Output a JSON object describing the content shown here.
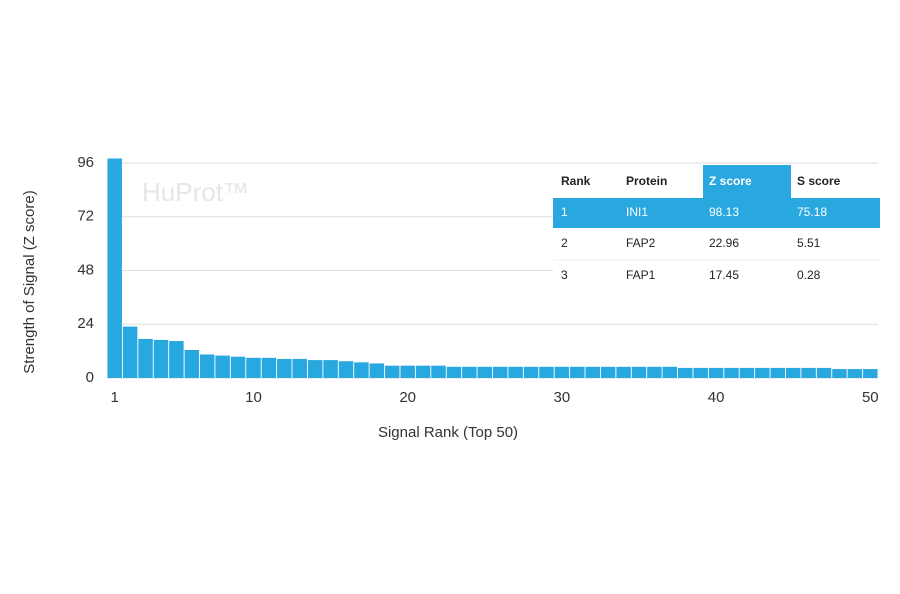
{
  "chart_data": {
    "type": "bar",
    "x": [
      1,
      2,
      3,
      4,
      5,
      6,
      7,
      8,
      9,
      10,
      11,
      12,
      13,
      14,
      15,
      16,
      17,
      18,
      19,
      20,
      21,
      22,
      23,
      24,
      25,
      26,
      27,
      28,
      29,
      30,
      31,
      32,
      33,
      34,
      35,
      36,
      37,
      38,
      39,
      40,
      41,
      42,
      43,
      44,
      45,
      46,
      47,
      48,
      49,
      50
    ],
    "values": [
      98,
      22.96,
      17.45,
      17,
      16.5,
      12.5,
      10.5,
      10,
      9.5,
      9,
      9,
      8.5,
      8.5,
      8,
      8,
      7.5,
      7,
      6.5,
      5.5,
      5.5,
      5.5,
      5.5,
      5,
      5,
      5,
      5,
      5,
      5,
      5,
      5,
      5,
      5,
      5,
      5,
      5,
      5,
      5,
      4.5,
      4.5,
      4.5,
      4.5,
      4.5,
      4.5,
      4.5,
      4.5,
      4.5,
      4.5,
      4,
      4,
      4
    ],
    "color": "#29a8e0",
    "xlim": [
      0.5,
      50.5
    ],
    "xticks": [
      1,
      10,
      20,
      30,
      40,
      50
    ],
    "ylim": [
      0,
      98
    ],
    "yticks": [
      0,
      24,
      48,
      72,
      96
    ],
    "grid": true,
    "xlabel": "Signal Rank (Top 50)",
    "ylabel": "Strength of Signal (Z score)",
    "watermark": "HuProt™"
  },
  "table": {
    "columns": [
      "Rank",
      "Protein",
      "Z score",
      "S score"
    ],
    "rows": [
      [
        "1",
        "INI1",
        "98.13",
        "75.18"
      ],
      [
        "2",
        "FAP2",
        "22.96",
        "5.51"
      ],
      [
        "3",
        "FAP1",
        "17.45",
        "0.28"
      ]
    ]
  }
}
